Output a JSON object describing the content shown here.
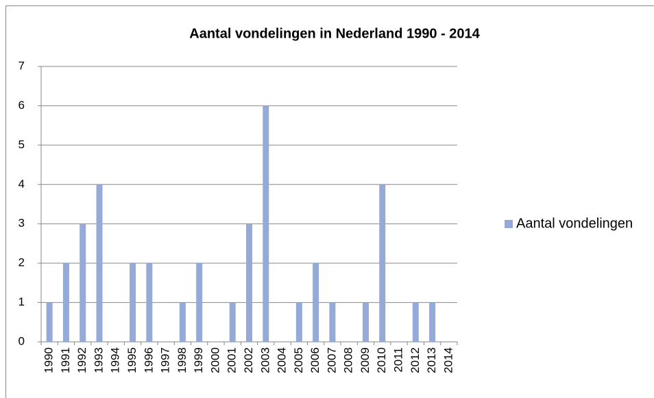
{
  "chart_data": {
    "type": "bar",
    "title": "Aantal vondelingen in Nederland 1990 - 2014",
    "categories": [
      "1990",
      "1991",
      "1992",
      "1993",
      "1994",
      "1995",
      "1996",
      "1997",
      "1998",
      "1999",
      "2000",
      "2001",
      "2002",
      "2003",
      "2004",
      "2005",
      "2006",
      "2007",
      "2008",
      "2009",
      "2010",
      "2011",
      "2012",
      "2013",
      "2014"
    ],
    "series": [
      {
        "name": "Aantal vondelingen",
        "color": "#95aad6",
        "values": [
          1,
          2,
          3,
          4,
          0,
          2,
          2,
          0,
          1,
          2,
          0,
          1,
          3,
          6,
          0,
          1,
          2,
          1,
          0,
          1,
          4,
          0,
          1,
          1,
          0
        ]
      }
    ],
    "ylim": [
      0,
      7
    ],
    "yticks": [
      0,
      1,
      2,
      3,
      4,
      5,
      6,
      7
    ],
    "grid": true,
    "legend": "right"
  }
}
